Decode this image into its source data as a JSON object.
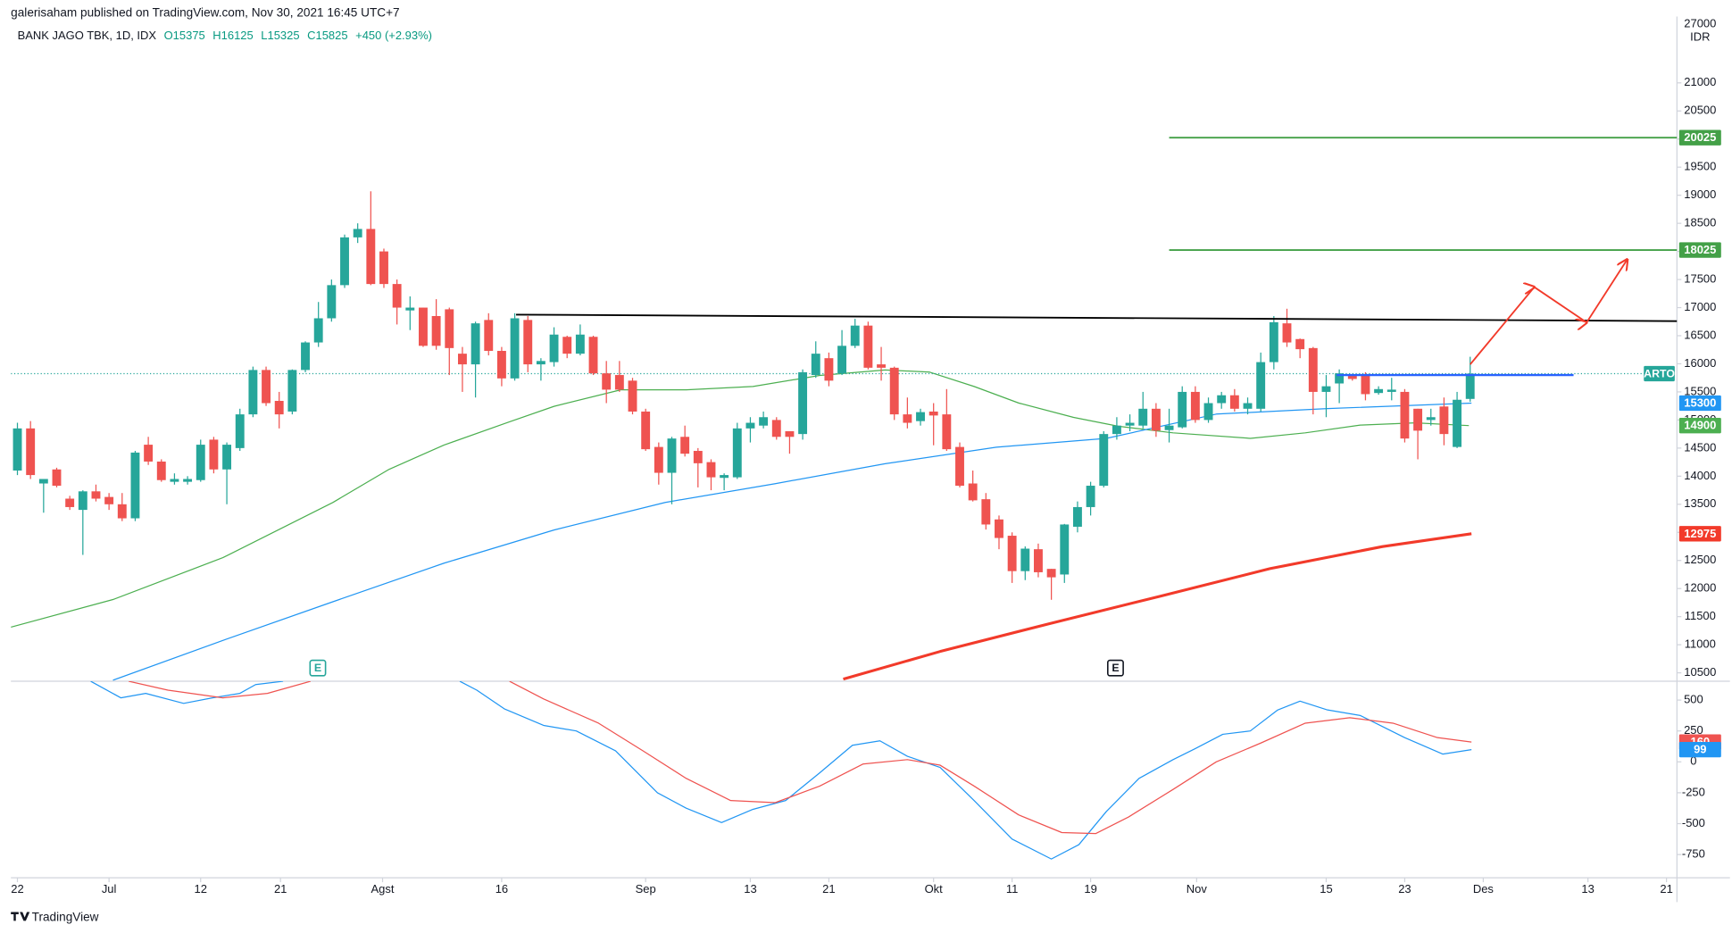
{
  "header": {
    "publisher": "galerisaham published on TradingView.com, Nov 30, 2021 16:45 UTC+7",
    "symbol": "BANK JAGO TBK, 1D, IDX",
    "ohlc": [
      "O15375",
      "H16125",
      "L15325",
      "C15825",
      "+450 (+2.93%)"
    ]
  },
  "footer": {
    "logo": "TradingView"
  },
  "chart_data": [
    {
      "type": "candlestick",
      "scale_top": "27000",
      "currency": "IDR",
      "last_label": "ARTO",
      "up_color": "#26a69a",
      "down_color": "#ef5350",
      "xlim": [
        -0.5,
        126.8
      ],
      "ylim": [
        10350,
        22180
      ],
      "yticks": [
        10500,
        11000,
        11500,
        12000,
        12500,
        13000,
        13500,
        14000,
        14500,
        15000,
        15500,
        16000,
        16500,
        17000,
        17500,
        18000,
        18500,
        19000,
        19500,
        20000,
        20500,
        21000
      ],
      "open": [
        14100,
        14850,
        13870,
        14120,
        13600,
        13400,
        13730,
        13630,
        13500,
        13250,
        14560,
        14260,
        13900,
        13900,
        13930,
        14650,
        14120,
        14500,
        15100,
        15890,
        15340,
        15150,
        15890,
        16380,
        16810,
        17400,
        18250,
        18400,
        18000,
        17420,
        16950,
        17000,
        16850,
        16970,
        16180,
        15990,
        16780,
        16230,
        15740,
        16780,
        15990,
        16030,
        16480,
        16180,
        16480,
        15830,
        15800,
        15700,
        15150,
        14520,
        14060,
        14700,
        14450,
        14250,
        13970,
        13980,
        14850,
        14900,
        15000,
        14800,
        14750,
        15800,
        16100,
        15830,
        16320,
        16680,
        15990,
        15930,
        15100,
        14980,
        15150,
        15100,
        14520,
        13870,
        13590,
        13230,
        12940,
        12310,
        12700,
        12350,
        12250,
        13100,
        13450,
        13830,
        14750,
        14900,
        14900,
        15200,
        14820,
        14870,
        15500,
        15000,
        15300,
        15440,
        15200,
        15200,
        16030,
        16720,
        16440,
        16280,
        15500,
        15650,
        15800,
        15800,
        15480,
        15500,
        15500,
        15200,
        15000,
        15240,
        14520,
        15375
      ],
      "high": [
        14950,
        14980,
        13950,
        14150,
        13650,
        13750,
        13850,
        13700,
        13700,
        14450,
        14700,
        14300,
        14050,
        14000,
        14650,
        14700,
        14600,
        15200,
        15950,
        15950,
        15500,
        15900,
        16400,
        17100,
        17500,
        18300,
        18500,
        19070,
        18050,
        17500,
        17200,
        17000,
        17150,
        17000,
        16300,
        16750,
        16900,
        16300,
        16900,
        16850,
        16100,
        16650,
        16500,
        16700,
        16500,
        16050,
        16050,
        15750,
        15200,
        14600,
        14700,
        14900,
        14500,
        14300,
        14050,
        14950,
        15050,
        15150,
        15050,
        14800,
        15900,
        16400,
        16200,
        16600,
        16800,
        16750,
        16300,
        15950,
        15400,
        15200,
        15300,
        15550,
        14600,
        14100,
        13700,
        13300,
        13000,
        12750,
        12800,
        12350,
        13150,
        13550,
        13900,
        14800,
        15050,
        15100,
        15500,
        15300,
        15200,
        15600,
        15600,
        15400,
        15500,
        15550,
        15400,
        16200,
        16850,
        16980,
        16450,
        16300,
        15800,
        15900,
        15800,
        15850,
        15600,
        15750,
        15550,
        15200,
        15200,
        15400,
        15500,
        16125
      ],
      "low": [
        14020,
        13950,
        13350,
        13800,
        13400,
        12600,
        13550,
        13400,
        13200,
        13200,
        14200,
        13900,
        13850,
        13850,
        13900,
        14050,
        13500,
        14450,
        15050,
        15250,
        14850,
        15100,
        15850,
        16300,
        16750,
        17350,
        18150,
        17400,
        17350,
        16700,
        16600,
        16300,
        16250,
        15800,
        15500,
        15400,
        16150,
        15600,
        15700,
        15850,
        15700,
        15950,
        16100,
        16150,
        15800,
        15300,
        15500,
        15100,
        14450,
        13850,
        13500,
        14350,
        13800,
        13750,
        13750,
        13950,
        14600,
        14850,
        14650,
        14400,
        14650,
        15750,
        15600,
        15800,
        16280,
        15900,
        15700,
        15000,
        14850,
        14900,
        14550,
        14450,
        13800,
        13550,
        13050,
        12700,
        12100,
        12150,
        12200,
        11800,
        12100,
        13000,
        13300,
        13800,
        14650,
        14800,
        14850,
        14700,
        14600,
        14850,
        14950,
        14950,
        15200,
        15150,
        15100,
        15150,
        15900,
        16300,
        16100,
        15100,
        15050,
        15300,
        15700,
        15350,
        15450,
        15350,
        14600,
        14300,
        14900,
        14550,
        14500,
        15325
      ],
      "close": [
        14850,
        14020,
        13950,
        13830,
        13450,
        13730,
        13600,
        13500,
        13250,
        14420,
        14260,
        13930,
        13950,
        13950,
        14560,
        14120,
        14560,
        15100,
        15890,
        15300,
        15100,
        15890,
        16380,
        16810,
        17400,
        18250,
        18400,
        17420,
        17420,
        17000,
        17000,
        16320,
        16320,
        16280,
        15990,
        16720,
        16230,
        15740,
        16810,
        15990,
        16050,
        16520,
        16180,
        16520,
        15830,
        15540,
        15540,
        15150,
        14480,
        14060,
        14670,
        14400,
        14230,
        13980,
        14020,
        14850,
        14950,
        15050,
        14700,
        14700,
        15850,
        16180,
        15700,
        16320,
        16680,
        15930,
        15930,
        15100,
        14950,
        15140,
        15080,
        14480,
        13830,
        13570,
        13140,
        12900,
        12310,
        12710,
        12290,
        12200,
        13140,
        13450,
        13830,
        14750,
        14900,
        14950,
        15200,
        14810,
        14900,
        15500,
        15000,
        15300,
        15440,
        15200,
        15300,
        16030,
        16740,
        16380,
        16260,
        15500,
        15600,
        15830,
        15730,
        15460,
        15550,
        15540,
        14670,
        14810,
        15050,
        14750,
        15360,
        15825
      ],
      "lines": [
        {
          "color": "#4caf50",
          "width": 1,
          "axis_label": true,
          "x": [
            -0.5,
            7.3,
            15.7,
            24.1,
            28.4,
            32.6,
            37.6,
            41.0,
            46.1,
            51.1,
            56.2,
            61.3,
            66.3,
            69.7,
            73.1,
            76.5,
            80.7,
            84.1,
            88.3,
            94.2,
            98.4,
            102.6,
            106.8,
            110.9
          ],
          "values": [
            11313,
            11804,
            12550,
            13532,
            14122,
            14555,
            14967,
            15243,
            15537,
            15537,
            15596,
            15793,
            15891,
            15852,
            15596,
            15302,
            15046,
            14889,
            14771,
            14673,
            14771,
            14909,
            14948,
            14900
          ]
        },
        {
          "color": "#2196f3",
          "width": 1,
          "axis_label": true,
          "x": [
            7.3,
            15.7,
            24.1,
            32.6,
            41.0,
            49.5,
            57.9,
            66.3,
            74.8,
            83.2,
            91.6,
            100.1,
            111.1
          ],
          "values": [
            10369,
            11077,
            11765,
            12452,
            13042,
            13533,
            13867,
            14221,
            14516,
            14673,
            15105,
            15203,
            15300
          ]
        },
        {
          "color": "#f23a2a",
          "width": 2.5,
          "axis_label": true,
          "x": [
            63.1,
            70.5,
            78.8,
            87.3,
            95.7,
            104.3,
            111.1
          ],
          "values": [
            10389,
            10880,
            11372,
            11863,
            12354,
            12747,
            12975
          ]
        },
        {
          "color": "#000000",
          "width": 1.5,
          "x": [
            38.1,
            126.8
          ],
          "values": [
            16875,
            16760
          ]
        },
        {
          "color": "#2962ff",
          "width": 2,
          "x": [
            100.8,
            118.9
          ],
          "values": [
            15800,
            15800
          ]
        },
        {
          "color": "#f23a2a",
          "width": 1.5,
          "arrows": true,
          "x": [
            111,
            115.9,
            119.9,
            123.0
          ],
          "values": [
            15989,
            17365,
            16736,
            17856
          ]
        }
      ],
      "levels": [
        {
          "value": 20025,
          "color": "#43a047",
          "x": [
            88.0,
            126.8
          ]
        },
        {
          "value": 18025,
          "color": "#43a047",
          "x": [
            88.0,
            126.8
          ]
        }
      ],
      "events": [
        {
          "x": 22.95,
          "label": "E",
          "color": "#26a69a"
        },
        {
          "x": 83.9,
          "label": "E",
          "color": "#131722"
        }
      ]
    },
    {
      "type": "line",
      "xlim": [
        -0.5,
        126.8
      ],
      "ylim": [
        -938,
        652
      ],
      "yticks": [
        500,
        250,
        0,
        -250,
        -500,
        -750
      ],
      "xticks": [
        {
          "value": 0,
          "label": "22"
        },
        {
          "value": 7,
          "label": "Jul"
        },
        {
          "value": 14,
          "label": "12"
        },
        {
          "value": 20.1,
          "label": "21"
        },
        {
          "value": 27.9,
          "label": "Agst"
        },
        {
          "value": 37,
          "label": "16"
        },
        {
          "value": 48,
          "label": "Sep"
        },
        {
          "value": 56,
          "label": "13"
        },
        {
          "value": 62,
          "label": "21"
        },
        {
          "value": 70,
          "label": "Okt"
        },
        {
          "value": 76,
          "label": "11"
        },
        {
          "value": 82,
          "label": "19"
        },
        {
          "value": 90.1,
          "label": "Nov"
        },
        {
          "value": 100,
          "label": "15"
        },
        {
          "value": 106,
          "label": "23"
        },
        {
          "value": 112,
          "label": "Des"
        },
        {
          "value": 120,
          "label": "13"
        },
        {
          "value": 126,
          "label": "21"
        }
      ],
      "series": [
        {
          "color": "#2196f3",
          "x": [
            5.6,
            7.9,
            9.8,
            12.7,
            14.9,
            17.0,
            18.2,
            20.3,
            27,
            33.8,
            35.1,
            37.2,
            40.2,
            42.7,
            45.7,
            48.9,
            51.1,
            53.8,
            56.2,
            58.7,
            61.3,
            63.8,
            65.9,
            68.0,
            70.5,
            73.1,
            76.0,
            79.0,
            81.1,
            83.2,
            85.7,
            88.3,
            90.0,
            92.1,
            94.2,
            96.3,
            98.0,
            100.1,
            102.6,
            106.0,
            108.9,
            111.1
          ],
          "values": [
            652,
            518,
            554,
            473,
            518,
            554,
            625,
            652,
            null,
            652,
            580,
            429,
            295,
            250,
            89,
            -250,
            -375,
            -491,
            -384,
            -313,
            -89,
            134,
            170,
            45,
            -45,
            -313,
            -625,
            -786,
            -670,
            -402,
            -134,
            18,
            107,
            223,
            250,
            420,
            491,
            420,
            375,
            196,
            63,
            99
          ]
        },
        {
          "color": "#ef5350",
          "x": [
            8.5,
            11.5,
            15.7,
            19.1,
            22.4,
            30,
            37.6,
            40.2,
            44.4,
            47.8,
            51.1,
            54.5,
            57.9,
            61.3,
            64.6,
            68.0,
            70.5,
            73.1,
            76.5,
            79.8,
            82.4,
            84.9,
            88.3,
            91.6,
            95.0,
            98.4,
            101.8,
            105.1,
            108.5,
            111.1
          ],
          "values": [
            652,
            580,
            518,
            554,
            652,
            null,
            652,
            509,
            313,
            89,
            -134,
            -313,
            -330,
            -196,
            -18,
            18,
            -27,
            -196,
            -429,
            -572,
            -580,
            -446,
            -223,
            0,
            152,
            313,
            357,
            313,
            196,
            160
          ]
        }
      ]
    }
  ]
}
